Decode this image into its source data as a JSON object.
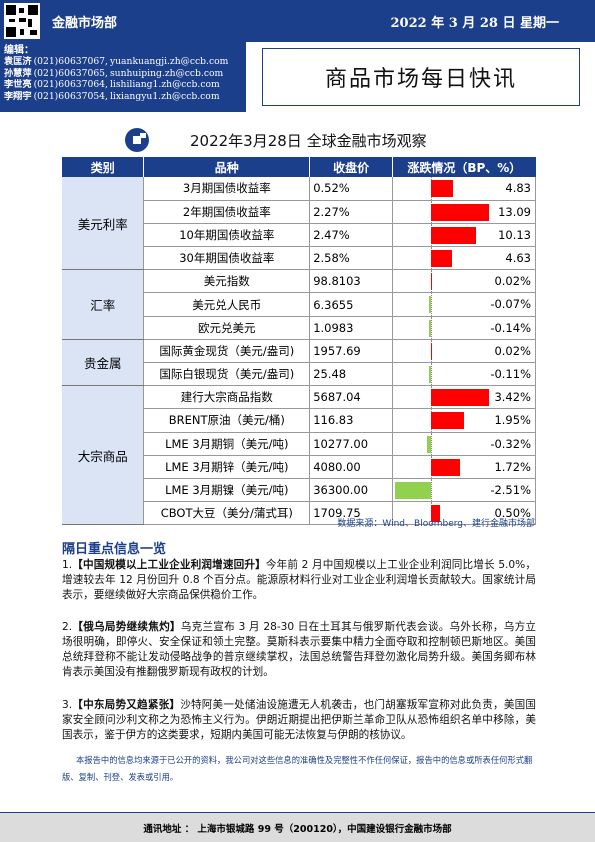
{
  "header": {
    "dept": "金融市场部",
    "date": "2022 年 3 月 28 日 星期一",
    "title": "商品市场每日快讯"
  },
  "editors": {
    "label": "编辑：",
    "list": [
      {
        "name": "袁匡济",
        "phone": "(021)60637067,",
        "email": "yuankuangji.zh@ccb.com"
      },
      {
        "name": "孙慧萍",
        "phone": "(021)60637065,",
        "email": "sunhuiping.zh@ccb.com"
      },
      {
        "name": "李世亮",
        "phone": "(021)60637064,",
        "email": "lishiliang1.zh@ccb.com"
      },
      {
        "name": "李翔宇",
        "phone": "(021)60637054,",
        "email": "lixiangyu1.zh@ccb.com"
      }
    ]
  },
  "table": {
    "title": "2022年3月28日 全球金融市场观察",
    "headers": [
      "类别",
      "品种",
      "收盘价",
      "涨跌情况（BP、%）"
    ],
    "rows": [
      {
        "cat": "美元利率",
        "span": 4,
        "name": "3月期国债收益率",
        "close": "0.52%",
        "chg": "4.83",
        "v": 4.83,
        "max": 13.09
      },
      {
        "name": "2年期国债收益率",
        "close": "2.27%",
        "chg": "13.09",
        "v": 13.09,
        "max": 13.09
      },
      {
        "name": "10年期国债收益率",
        "close": "2.47%",
        "chg": "10.13",
        "v": 10.13,
        "max": 13.09
      },
      {
        "name": "30年期国债收益率",
        "close": "2.58%",
        "chg": "4.63",
        "v": 4.63,
        "max": 13.09
      },
      {
        "cat": "汇率",
        "span": 3,
        "name": "美元指数",
        "close": "98.8103",
        "chg": "0.02%",
        "v": 0.02,
        "max": 3.42
      },
      {
        "name": "美元兑人民币",
        "close": "6.3655",
        "chg": "-0.07%",
        "v": -0.07,
        "max": 3.42
      },
      {
        "name": "欧元兑美元",
        "close": "1.0983",
        "chg": "-0.14%",
        "v": -0.14,
        "max": 3.42
      },
      {
        "cat": "贵金属",
        "span": 2,
        "name": "国际黄金现货（美元/盎司)",
        "close": "1957.69",
        "chg": "0.02%",
        "v": 0.02,
        "max": 3.42
      },
      {
        "name": "国际白银现货（美元/盎司)",
        "close": "25.48",
        "chg": "-0.11%",
        "v": -0.11,
        "max": 3.42
      },
      {
        "cat": "大宗商品",
        "span": 6,
        "name": "建行大宗商品指数",
        "close": "5687.04",
        "chg": "3.42%",
        "v": 3.42,
        "max": 3.42
      },
      {
        "name": "BRENT原油（美元/桶)",
        "close": "116.83",
        "chg": "1.95%",
        "v": 1.95,
        "max": 3.42
      },
      {
        "name": "LME 3月期铜（美元/吨)",
        "close": "10277.00",
        "chg": "-0.32%",
        "v": -0.32,
        "max": 3.42
      },
      {
        "name": "LME 3月期锌（美元/吨)",
        "close": "4080.00",
        "chg": "1.72%",
        "v": 1.72,
        "max": 3.42
      },
      {
        "name": "LME 3月期镍（美元/吨)",
        "close": "36300.00",
        "chg": "-2.51%",
        "v": -2.51,
        "max": 3.42
      },
      {
        "name": "CBOT大豆（美分/蒲式耳)",
        "close": "1709.75",
        "chg": "0.50%",
        "v": 0.5,
        "max": 3.42
      }
    ],
    "source": "数据来源：Wind、Bloomberg、建行金融市场部",
    "up_color": "#ff0000",
    "down_color": "#92d050"
  },
  "news": {
    "heading": "隔日重点信息一览",
    "items": [
      {
        "num": "1.",
        "headline": "【中国规模以上工业企业利润增速回升】",
        "body": "今年前 2 月中国规模以上工业企业利润同比增长 5.0%，增速较去年 12 月份回升 0.8 个百分点。能源原材料行业对工业企业利润增长贡献较大。国家统计局表示，要继续做好大宗商品保供稳价工作。"
      },
      {
        "num": "2.",
        "headline": "【俄乌局势继续焦灼】",
        "body": "乌克兰宣布 3 月 28-30 日在土耳其与俄罗斯代表会谈。乌外长称，乌方立场很明确，即停火、安全保证和领土完整。莫斯科表示要集中精力全面夺取和控制顿巴斯地区。美国总统拜登称不能让发动侵略战争的普京继续掌权，法国总统警告拜登勿激化局势升级。美国务卿布林肯表示美国没有推翻俄罗斯现有政权的计划。"
      },
      {
        "num": "3.",
        "headline": "【中东局势又趋紧张】",
        "body": "沙特阿美一处储油设施遭无人机袭击，也门胡塞叛军宣称对此负责，美国国家安全顾问沙利文称之为恐怖主义行为。伊朗近期提出把伊斯兰革命卫队从恐怖组织名单中移除，美国表示，鉴于伊方的这类要求，短期内美国可能无法恢复与伊朗的核协议。"
      }
    ]
  },
  "disclaimer": "本报告中的信息均来源于已公开的资料，我公司对这些信息的准确性及完整性不作任何保证，报告中的信息或所表任何形式翻版、复制、刊登、发表或引用。",
  "footer": "通讯地址 ： 上海市银城路 99 号（200120），中国建设银行金融市场部"
}
